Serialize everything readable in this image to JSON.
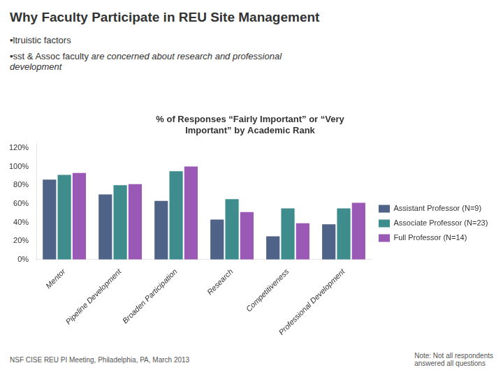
{
  "chart_data": {
    "type": "bar",
    "title": "% of Responses “Fairly Important” or “Very\nImportant” by Academic Rank",
    "categories": [
      "Mentor",
      "Pipeline Development",
      "Broaden Participation",
      "Research",
      "Competitiveness",
      "Professional Development"
    ],
    "series": [
      {
        "name": "Assistant Professor (N=9)",
        "color": "#4f6288",
        "values": [
          0.86,
          0.7,
          0.63,
          0.43,
          0.25,
          0.38
        ]
      },
      {
        "name": "Associate Professor (N=23)",
        "color": "#3e8c8c",
        "values": [
          0.91,
          0.8,
          0.95,
          0.65,
          0.55,
          0.55
        ]
      },
      {
        "name": "Full Professor (N=14)",
        "color": "#9b59b6",
        "values": [
          0.93,
          0.81,
          1.0,
          0.51,
          0.39,
          0.61
        ]
      }
    ],
    "ylim": [
      0,
      1.25
    ],
    "yticks": [
      {
        "value": 0,
        "label": "0%"
      },
      {
        "value": 0.2,
        "label": "20%"
      },
      {
        "value": 0.4,
        "label": "40%"
      },
      {
        "value": 0.6,
        "label": "60%"
      },
      {
        "value": 0.8,
        "label": "80%"
      },
      {
        "value": 1.0,
        "label": "100%"
      },
      {
        "value": 1.2,
        "label": "120%"
      }
    ],
    "grid": false,
    "legend": "right",
    "annotations": [
      "Why Faculty Participate in REU Site Management",
      "▪ltruistic factors",
      "▪sst & Assoc faculty ",
      "are concerned about research and professional\ndevelopment",
      "Note: Not all respondents\nanswered all questions",
      "NSF CISE REU PI Meeting, Philadelphia, PA, March 2013"
    ]
  }
}
